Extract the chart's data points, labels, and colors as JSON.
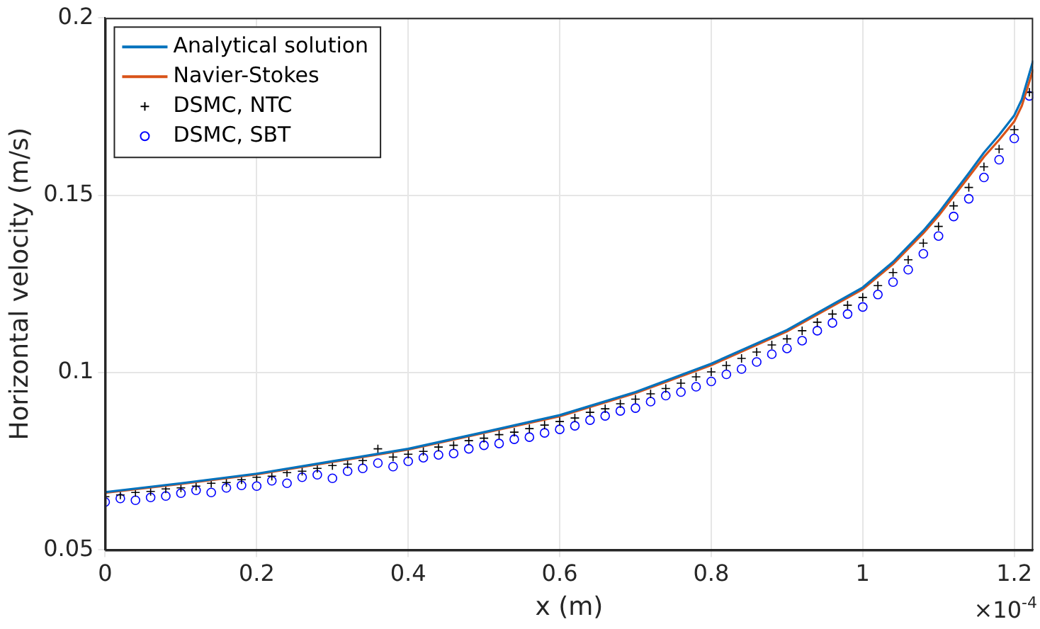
{
  "chart_data": {
    "type": "line",
    "xlabel": "x (m)",
    "ylabel": "Horizontal velocity (m/s)",
    "xlim": [
      0,
      1.225
    ],
    "xticks": [
      0,
      0.2,
      0.4,
      0.6,
      0.8,
      1,
      1.2
    ],
    "ylim": [
      0.05,
      0.2
    ],
    "yticks": [
      0.05,
      0.1,
      0.15,
      0.2
    ],
    "grid": true,
    "legend": "top left",
    "annotations": [
      "×10$^{-4}$"
    ],
    "series": [
      {
        "name": "Analytical solution",
        "color": "#0072bd",
        "marker": "none",
        "x": [
          0,
          0.1,
          0.2,
          0.3,
          0.4,
          0.5,
          0.6,
          0.7,
          0.8,
          0.9,
          1,
          1.04,
          1.08,
          1.1,
          1.12,
          1.14,
          1.16,
          1.18,
          1.2,
          1.21,
          1.225
        ],
        "values": [
          0.0663,
          0.0688,
          0.0715,
          0.075,
          0.0785,
          0.0832,
          0.088,
          0.0945,
          0.1025,
          0.112,
          0.124,
          0.1312,
          0.14,
          0.145,
          0.1506,
          0.1562,
          0.162,
          0.167,
          0.1725,
          0.177,
          0.188
        ]
      },
      {
        "name": "Navier-Stokes",
        "color": "#d95319",
        "marker": "none",
        "x": [
          0,
          0.1,
          0.2,
          0.3,
          0.4,
          0.5,
          0.6,
          0.7,
          0.8,
          0.9,
          1,
          1.04,
          1.08,
          1.1,
          1.12,
          1.14,
          1.16,
          1.18,
          1.2,
          1.21,
          1.225
        ],
        "values": [
          0.0661,
          0.0686,
          0.0713,
          0.0748,
          0.0783,
          0.083,
          0.0877,
          0.0942,
          0.1021,
          0.1116,
          0.1235,
          0.1306,
          0.1393,
          0.1442,
          0.1497,
          0.1552,
          0.1608,
          0.1656,
          0.1708,
          0.1752,
          0.1855
        ]
      },
      {
        "name": "DSMC, NTC",
        "type": "scatter",
        "color": "#000000",
        "marker": "cross",
        "x": [
          0,
          0.02,
          0.04,
          0.06,
          0.08,
          0.1,
          0.12,
          0.14,
          0.16,
          0.18,
          0.2,
          0.22,
          0.24,
          0.26,
          0.28,
          0.3,
          0.32,
          0.34,
          0.36,
          0.38,
          0.4,
          0.42,
          0.44,
          0.46,
          0.48,
          0.5,
          0.52,
          0.54,
          0.56,
          0.58,
          0.6,
          0.62,
          0.64,
          0.66,
          0.68,
          0.7,
          0.72,
          0.74,
          0.76,
          0.78,
          0.8,
          0.82,
          0.84,
          0.86,
          0.88,
          0.9,
          0.92,
          0.94,
          0.96,
          0.98,
          1,
          1.02,
          1.04,
          1.06,
          1.08,
          1.1,
          1.12,
          1.14,
          1.16,
          1.18,
          1.2,
          1.22
        ],
        "values": [
          0.065,
          0.0655,
          0.0662,
          0.0665,
          0.0672,
          0.0675,
          0.068,
          0.0688,
          0.069,
          0.0698,
          0.0705,
          0.0708,
          0.0718,
          0.0722,
          0.073,
          0.0738,
          0.0742,
          0.0752,
          0.0785,
          0.0762,
          0.077,
          0.0778,
          0.079,
          0.0795,
          0.0808,
          0.0815,
          0.0825,
          0.0832,
          0.0842,
          0.0852,
          0.0862,
          0.0872,
          0.0888,
          0.0898,
          0.0912,
          0.0925,
          0.094,
          0.0955,
          0.097,
          0.0988,
          0.1002,
          0.102,
          0.104,
          0.1058,
          0.1078,
          0.1095,
          0.1118,
          0.1142,
          0.1165,
          0.119,
          0.1212,
          0.1245,
          0.1282,
          0.1318,
          0.1365,
          0.1412,
          0.147,
          0.1522,
          0.158,
          0.163,
          0.1685,
          0.179
        ]
      },
      {
        "name": "DSMC, SBT",
        "type": "scatter",
        "color": "#0000ff",
        "marker": "circle",
        "x": [
          0,
          0.02,
          0.04,
          0.06,
          0.08,
          0.1,
          0.12,
          0.14,
          0.16,
          0.18,
          0.2,
          0.22,
          0.24,
          0.26,
          0.28,
          0.3,
          0.32,
          0.34,
          0.36,
          0.38,
          0.4,
          0.42,
          0.44,
          0.46,
          0.48,
          0.5,
          0.52,
          0.54,
          0.56,
          0.58,
          0.6,
          0.62,
          0.64,
          0.66,
          0.68,
          0.7,
          0.72,
          0.74,
          0.76,
          0.78,
          0.8,
          0.82,
          0.84,
          0.86,
          0.88,
          0.9,
          0.92,
          0.94,
          0.96,
          0.98,
          1,
          1.02,
          1.04,
          1.06,
          1.08,
          1.1,
          1.12,
          1.14,
          1.16,
          1.18,
          1.2,
          1.22
        ],
        "values": [
          0.0635,
          0.0645,
          0.064,
          0.0648,
          0.0652,
          0.066,
          0.0668,
          0.0662,
          0.0675,
          0.0682,
          0.068,
          0.0695,
          0.0688,
          0.0705,
          0.0712,
          0.0702,
          0.0722,
          0.073,
          0.0745,
          0.0735,
          0.075,
          0.076,
          0.0768,
          0.0772,
          0.0785,
          0.0795,
          0.08,
          0.0812,
          0.0818,
          0.083,
          0.084,
          0.085,
          0.0866,
          0.0878,
          0.0892,
          0.09,
          0.0918,
          0.0935,
          0.0945,
          0.096,
          0.0975,
          0.0995,
          0.101,
          0.103,
          0.1052,
          0.1068,
          0.109,
          0.1118,
          0.114,
          0.1165,
          0.1185,
          0.122,
          0.1255,
          0.129,
          0.1335,
          0.1385,
          0.144,
          0.149,
          0.155,
          0.16,
          0.166,
          0.178
        ]
      }
    ]
  }
}
